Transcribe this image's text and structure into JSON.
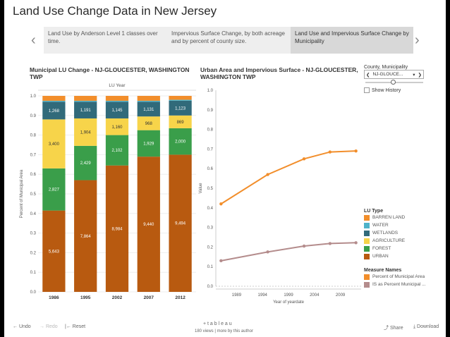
{
  "page_title": "Land Use Change Data in New Jersey",
  "story_points": [
    {
      "label": "Land Use by Anderson Level 1 classes over time."
    },
    {
      "label": "Impervious Surface Change, by both acreage and by percent of county size."
    },
    {
      "label": "Land Use and Impervious Surface Change  by Municipality"
    }
  ],
  "left_chart": {
    "title": "Municipal LU Change - NJ-GLOUCESTER, WASHINGTON TWP",
    "top_label": "LU Year",
    "ylabel": "Percent of Municipal Area"
  },
  "right_chart": {
    "title": "Urban Area and Impervious Surface - NJ-GLOUCESTER, WASHINGTON TWP",
    "ylabel": "Value",
    "xlabel": "Year of yeardate"
  },
  "filter": {
    "label": "County, Municipality",
    "value": "NJ-GLOUCE...",
    "show_history": "Show History"
  },
  "lu_legend": {
    "title": "LU Type",
    "items": [
      {
        "name": "BARREN LAND",
        "color": "#f28e2b"
      },
      {
        "name": "WATER",
        "color": "#4fb3c9"
      },
      {
        "name": "WETLANDS",
        "color": "#316a7a"
      },
      {
        "name": "AGRICULTURE",
        "color": "#f7d44a"
      },
      {
        "name": "FOREST",
        "color": "#3a9e4a"
      },
      {
        "name": "URBAN",
        "color": "#b85a10"
      }
    ]
  },
  "measure_legend": {
    "title": "Measure Names",
    "items": [
      {
        "name": "Percent of Municipal Area",
        "color": "#f28e2b"
      },
      {
        "name": "IS as Percent Municipal ...",
        "color": "#b48c8c"
      }
    ]
  },
  "chart_data": [
    {
      "type": "bar",
      "stacked": true,
      "categories": [
        "1986",
        "1995",
        "2002",
        "2007",
        "2012"
      ],
      "ylim": [
        0,
        1.0
      ],
      "yticks": [
        0.0,
        0.1,
        0.2,
        0.3,
        0.4,
        0.5,
        0.6,
        0.7,
        0.8,
        0.9,
        1.0
      ],
      "series": [
        {
          "name": "URBAN",
          "color": "#b85a10",
          "values": [
            0.415,
            0.57,
            0.645,
            0.69,
            0.7
          ],
          "labels": [
            "5,643",
            "7,864",
            "8,984",
            "9,440",
            "9,494"
          ]
        },
        {
          "name": "FOREST",
          "color": "#3a9e4a",
          "values": [
            0.215,
            0.175,
            0.155,
            0.135,
            0.135
          ],
          "labels": [
            "2,827",
            "2,429",
            "2,102",
            "1,929",
            "2,000"
          ]
        },
        {
          "name": "AGRICULTURE",
          "color": "#f7d44a",
          "values": [
            0.25,
            0.14,
            0.085,
            0.07,
            0.065
          ],
          "labels": [
            "3,400",
            "1,904",
            "1,160",
            "968",
            "869"
          ]
        },
        {
          "name": "WETLANDS",
          "color": "#316a7a",
          "values": [
            0.09,
            0.085,
            0.085,
            0.075,
            0.075
          ],
          "labels": [
            "1,268",
            "1,191",
            "1,145",
            "1,131",
            "1,123"
          ]
        },
        {
          "name": "WATER",
          "color": "#4fb3c9",
          "values": [
            0.005,
            0.005,
            0.005,
            0.005,
            0.005
          ],
          "labels": [
            "",
            "",
            "",
            "",
            ""
          ]
        },
        {
          "name": "BARREN LAND",
          "color": "#f28e2b",
          "values": [
            0.025,
            0.025,
            0.025,
            0.025,
            0.02
          ],
          "labels": [
            "",
            "",
            "",
            "",
            ""
          ]
        }
      ]
    },
    {
      "type": "line",
      "xlim": [
        1985,
        2013
      ],
      "ylim": [
        0,
        1.0
      ],
      "xticks": [
        1989,
        1994,
        1999,
        2004,
        2009
      ],
      "yticks": [
        0.0,
        0.1,
        0.2,
        0.3,
        0.4,
        0.5,
        0.6,
        0.7,
        0.8,
        0.9,
        1.0
      ],
      "series": [
        {
          "name": "Percent of Municipal Area",
          "color": "#f28e2b",
          "x": [
            1986,
            1995,
            2002,
            2007,
            2012
          ],
          "y": [
            0.42,
            0.57,
            0.65,
            0.685,
            0.69
          ]
        },
        {
          "name": "IS as Percent Municipal ...",
          "color": "#b48c8c",
          "x": [
            1986,
            1995,
            2002,
            2007,
            2012
          ],
          "y": [
            0.13,
            0.175,
            0.205,
            0.218,
            0.222
          ]
        }
      ]
    }
  ],
  "toolbar": {
    "undo": "Undo",
    "redo": "Redo",
    "reset": "Reset",
    "share": "Share",
    "download": "Download",
    "brand": "+ t a b l e a u",
    "views": "180 views | more by this author"
  }
}
